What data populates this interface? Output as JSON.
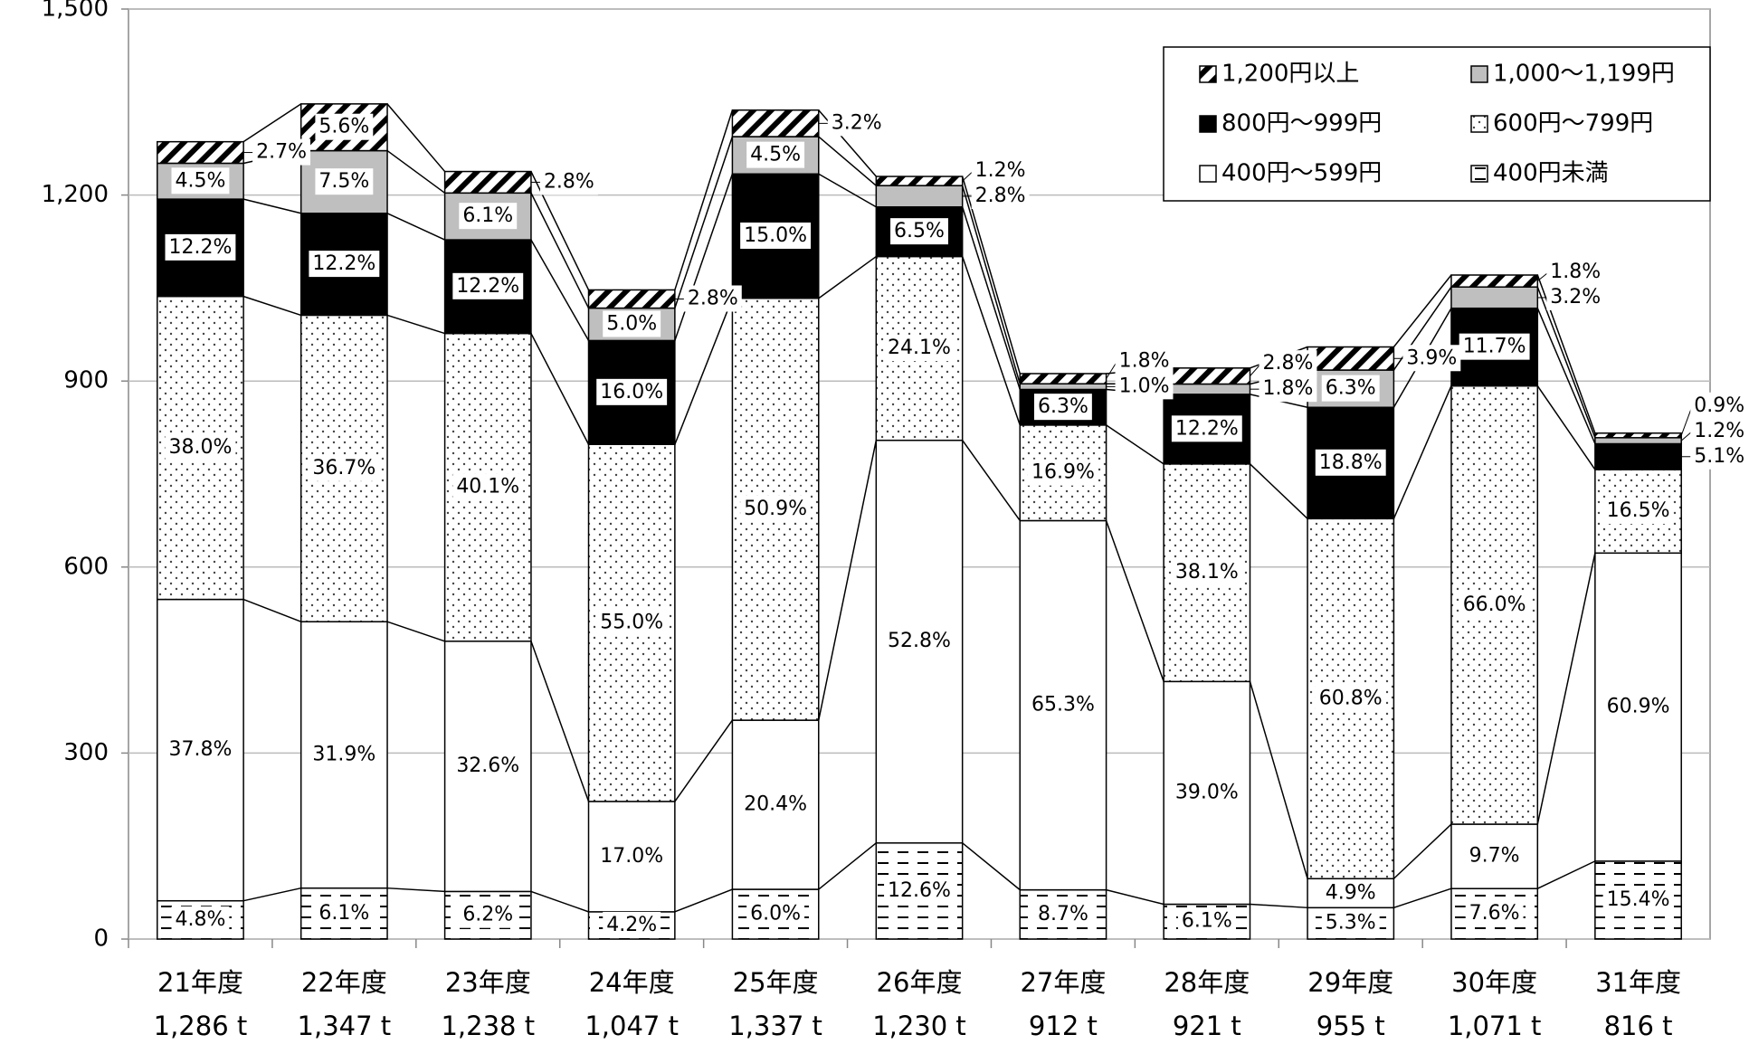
{
  "chart_data": {
    "type": "stacked-bar",
    "categories": [
      "21年度",
      "22年度",
      "23年度",
      "24年度",
      "25年度",
      "26年度",
      "27年度",
      "28年度",
      "29年度",
      "30年度",
      "31年度"
    ],
    "totals": [
      {
        "value": 1286,
        "label": "1,286 t"
      },
      {
        "value": 1347,
        "label": "1,347 t"
      },
      {
        "value": 1238,
        "label": "1,238 t"
      },
      {
        "value": 1047,
        "label": "1,047 t"
      },
      {
        "value": 1337,
        "label": "1,337 t"
      },
      {
        "value": 1230,
        "label": "1,230 t"
      },
      {
        "value": 912,
        "label": "912 t"
      },
      {
        "value": 921,
        "label": "921 t"
      },
      {
        "value": 955,
        "label": "955 t"
      },
      {
        "value": 1071,
        "label": "1,071 t"
      },
      {
        "value": 816,
        "label": "816 t"
      }
    ],
    "series": [
      {
        "name": "400円未満",
        "pattern": "dash",
        "color": "#000000",
        "values": [
          4.8,
          6.1,
          6.2,
          4.2,
          6.0,
          12.6,
          8.7,
          6.1,
          5.3,
          7.6,
          15.4
        ],
        "value_labels": [
          "4.8%",
          "6.1%",
          "6.2%",
          "4.2%",
          "6.0%",
          "12.6%",
          "8.7%",
          "6.1%",
          "5.3%",
          "7.6%",
          "15.4%"
        ]
      },
      {
        "name": "400円～599円",
        "pattern": "none",
        "color": "#ffffff",
        "values": [
          37.8,
          31.9,
          32.6,
          17.0,
          20.4,
          52.8,
          65.3,
          39.0,
          4.9,
          9.7,
          60.9
        ],
        "value_labels": [
          "37.8%",
          "31.9%",
          "32.6%",
          "17.0%",
          "20.4%",
          "52.8%",
          "65.3%",
          "39.0%",
          "4.9%",
          "9.7%",
          "60.9%"
        ]
      },
      {
        "name": "600円～799円",
        "pattern": "dot",
        "color": "#000000",
        "values": [
          38.0,
          36.7,
          40.1,
          55.0,
          50.9,
          24.1,
          16.9,
          38.1,
          60.8,
          66.0,
          16.5
        ],
        "value_labels": [
          "38.0%",
          "36.7%",
          "40.1%",
          "55.0%",
          "50.9%",
          "24.1%",
          "16.9%",
          "38.1%",
          "60.8%",
          "66.0%",
          "16.5%"
        ]
      },
      {
        "name": "800円～999円",
        "pattern": "none",
        "color": "#000000",
        "values": [
          12.2,
          12.2,
          12.2,
          16.0,
          15.0,
          6.5,
          6.3,
          12.2,
          18.8,
          11.7,
          5.1
        ],
        "value_labels": [
          "12.2%",
          "12.2%",
          "12.2%",
          "16.0%",
          "15.0%",
          "6.5%",
          "6.3%",
          "12.2%",
          "18.8%",
          "11.7%",
          "5.1%"
        ]
      },
      {
        "name": "1,000～1,199円",
        "pattern": "none",
        "color": "#bfbfbf",
        "values": [
          4.5,
          7.5,
          6.1,
          5.0,
          4.5,
          2.8,
          1.0,
          1.8,
          6.3,
          3.2,
          1.2
        ],
        "value_labels": [
          "4.5%",
          "7.5%",
          "6.1%",
          "5.0%",
          "4.5%",
          "2.8%",
          "1.0%",
          "1.8%",
          "6.3%",
          "3.2%",
          "1.2%"
        ]
      },
      {
        "name": "1,200円以上",
        "pattern": "hatch",
        "color": "#000000",
        "values": [
          2.7,
          5.6,
          2.8,
          2.8,
          3.2,
          1.2,
          1.8,
          2.8,
          3.9,
          1.8,
          0.9
        ],
        "value_labels": [
          "2.7%",
          "5.6%",
          "2.8%",
          "2.8%",
          "3.2%",
          "1.2%",
          "1.8%",
          "2.8%",
          "3.9%",
          "1.8%",
          "0.9%"
        ]
      }
    ],
    "ylim": [
      0,
      1500
    ],
    "yticks": [
      0,
      300,
      600,
      900,
      {
        "value": 1200,
        "label": "1,200"
      },
      {
        "value": 1500,
        "label": "1,500"
      }
    ],
    "grid": true,
    "legend": "top-right"
  }
}
